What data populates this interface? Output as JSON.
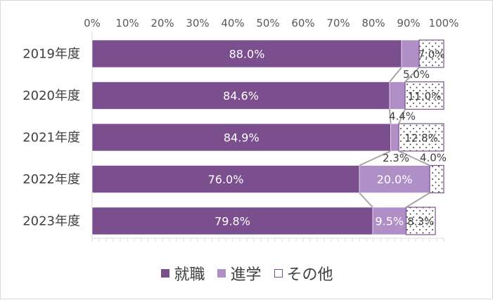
{
  "chart_data": {
    "type": "bar",
    "orientation": "horizontal",
    "stacked": true,
    "categories": [
      "2019年度",
      "2020年度",
      "2021年度",
      "2022年度",
      "2023年度"
    ],
    "series": [
      {
        "name": "就職",
        "values": [
          88.0,
          84.6,
          84.9,
          76.0,
          79.8
        ],
        "color": "#7b4f8e",
        "fill": "solid"
      },
      {
        "name": "進学",
        "values": [
          5.0,
          4.4,
          2.3,
          20.0,
          9.5
        ],
        "color": "#b08fc7",
        "fill": "solid"
      },
      {
        "name": "その他",
        "values": [
          7.0,
          11.0,
          12.8,
          4.0,
          8.3
        ],
        "color": "#7b4f8e",
        "fill": "dotted"
      }
    ],
    "labels": {
      "就職": [
        "88.0%",
        "84.6%",
        "84.9%",
        "76.0%",
        "79.8%"
      ],
      "進学": [
        "5.0%",
        "4.4%",
        "2.3%",
        "20.0%",
        "9.5%"
      ],
      "その他": [
        "7.0%",
        "11.0%",
        "12.8%",
        "4.0%",
        "8.3%"
      ]
    },
    "xlim": [
      0,
      100
    ],
    "xticks": [
      "0%",
      "10%",
      "20%",
      "30%",
      "40%",
      "50%",
      "60%",
      "70%",
      "80%",
      "90%",
      "100%"
    ],
    "grid": false,
    "legend_position": "bottom"
  }
}
